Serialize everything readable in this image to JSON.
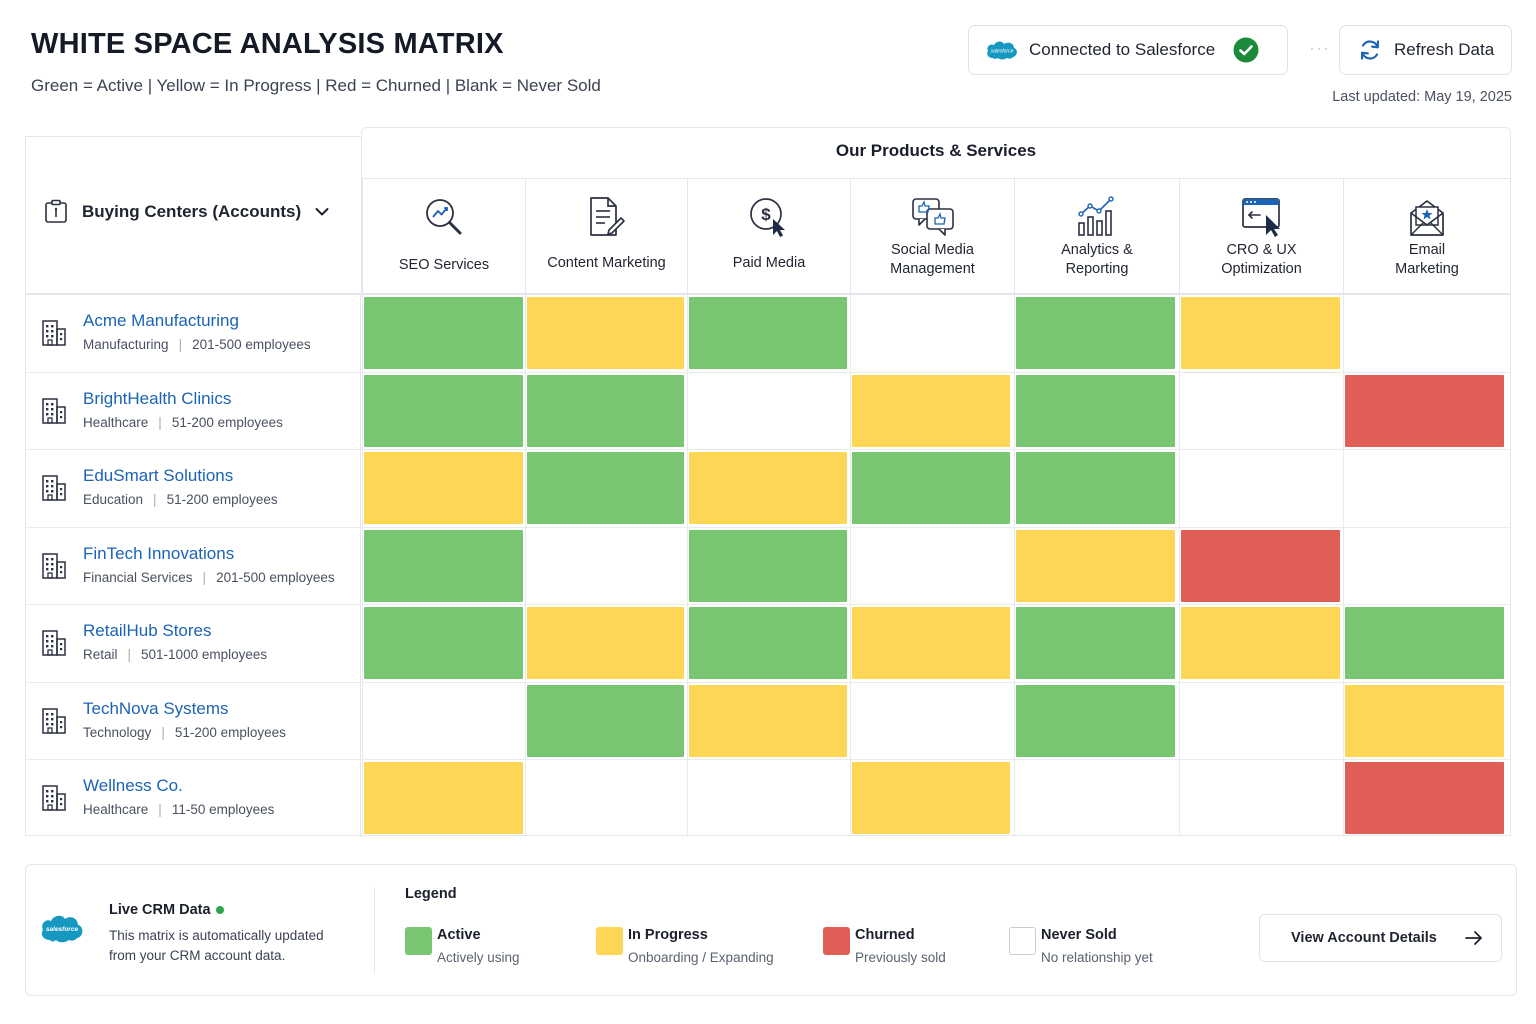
{
  "header": {
    "title": "WHITE SPACE ANALYSIS MATRIX",
    "subtitle": "Green = Active | Yellow = In Progress | Red = Churned | Blank = Never Sold",
    "connection_label": "Connected to Salesforce",
    "refresh_label": "Refresh Data",
    "last_updated": "Last updated: May 19, 2025"
  },
  "colors": {
    "active": "#78c572",
    "in_progress": "#fdd655",
    "churned": "#df5f57",
    "never_sold": "#ffffff",
    "link": "#1b63b5",
    "salesforce": "#1798c1"
  },
  "matrix": {
    "row_header_label": "Buying Centers (Accounts)",
    "products_title": "Our Products & Services",
    "products": [
      {
        "label": "SEO Services",
        "icon": "seo-magnifier-icon"
      },
      {
        "label": "Content Marketing",
        "icon": "document-pen-icon"
      },
      {
        "label": "Paid Media",
        "icon": "dollar-cursor-icon"
      },
      {
        "label": "Social Media Management",
        "icon": "social-chat-icon"
      },
      {
        "label": "Analytics & Reporting",
        "icon": "bar-chart-icon"
      },
      {
        "label": "CRO & UX Optimization",
        "icon": "browser-cursor-icon"
      },
      {
        "label": "Email Marketing",
        "icon": "envelope-icon"
      }
    ],
    "accounts": [
      {
        "name": "Acme Manufacturing",
        "industry": "Manufacturing",
        "size": "201-500 employees",
        "status": [
          "active",
          "in_progress",
          "active",
          "never_sold",
          "active",
          "in_progress",
          "never_sold"
        ]
      },
      {
        "name": "BrightHealth Clinics",
        "industry": "Healthcare",
        "size": "51-200 employees",
        "status": [
          "active",
          "active",
          "never_sold",
          "in_progress",
          "active",
          "never_sold",
          "churned"
        ]
      },
      {
        "name": "EduSmart Solutions",
        "industry": "Education",
        "size": "51-200 employees",
        "status": [
          "in_progress",
          "active",
          "in_progress",
          "active",
          "active",
          "never_sold",
          "never_sold"
        ]
      },
      {
        "name": "FinTech Innovations",
        "industry": "Financial Services",
        "size": "201-500 employees",
        "status": [
          "active",
          "never_sold",
          "active",
          "never_sold",
          "in_progress",
          "churned",
          "never_sold"
        ]
      },
      {
        "name": "RetailHub Stores",
        "industry": "Retail",
        "size": "501-1000 employees",
        "status": [
          "active",
          "in_progress",
          "active",
          "in_progress",
          "active",
          "in_progress",
          "active"
        ]
      },
      {
        "name": "TechNova Systems",
        "industry": "Technology",
        "size": "51-200 employees",
        "status": [
          "never_sold",
          "active",
          "in_progress",
          "never_sold",
          "active",
          "never_sold",
          "in_progress"
        ]
      },
      {
        "name": "Wellness Co.",
        "industry": "Healthcare",
        "size": "11-50 employees",
        "status": [
          "in_progress",
          "never_sold",
          "never_sold",
          "in_progress",
          "never_sold",
          "never_sold",
          "churned"
        ]
      }
    ]
  },
  "footer": {
    "live_title": "Live CRM Data",
    "live_desc": "This matrix is automatically updated from your CRM account data.",
    "legend_title": "Legend",
    "legend": [
      {
        "key": "active",
        "label": "Active",
        "sub": "Actively using"
      },
      {
        "key": "in_progress",
        "label": "In Progress",
        "sub": "Onboarding / Expanding"
      },
      {
        "key": "churned",
        "label": "Churned",
        "sub": "Previously sold"
      },
      {
        "key": "never_sold",
        "label": "Never Sold",
        "sub": "No relationship yet"
      }
    ],
    "view_details_label": "View Account Details"
  },
  "logos": {
    "salesforce_word": "salesforce"
  }
}
